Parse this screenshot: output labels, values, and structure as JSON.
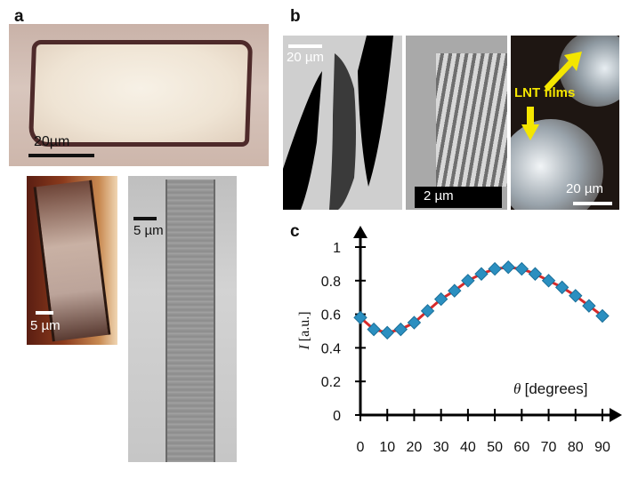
{
  "panels": {
    "a": {
      "label": "a",
      "micrographs": [
        {
          "scale_text": "20µm"
        },
        {
          "scale_text": "5 µm"
        },
        {
          "scale_text": "5 µm"
        }
      ]
    },
    "b": {
      "label": "b",
      "micrographs": [
        {
          "scale_text": "20 µm"
        },
        {
          "scale_text": "2 µm"
        },
        {
          "scale_text": "20 µm",
          "annotation": "LNT films"
        }
      ]
    },
    "c": {
      "label": "c"
    }
  },
  "colors": {
    "line": "#d62a2a",
    "marker": "#2b8fc0",
    "annotation": "#f4e600"
  },
  "chart_data": {
    "type": "line",
    "xlabel_symbol": "θ",
    "xlabel_unit": "[degrees]",
    "ylabel_symbol": "I",
    "ylabel_unit": "[a.u.]",
    "xlim": [
      0,
      90
    ],
    "ylim": [
      0,
      1
    ],
    "xticks": [
      "0",
      "10",
      "20",
      "30",
      "40",
      "50",
      "60",
      "70",
      "80",
      "90"
    ],
    "yticks": [
      "0",
      "0.2",
      "0.4",
      "0.6",
      "0.8",
      "1"
    ],
    "series": [
      {
        "style": "markers",
        "x": [
          0,
          5,
          10,
          15,
          20,
          25,
          30,
          35,
          40,
          45,
          50,
          55,
          60,
          65,
          70,
          75,
          80,
          85,
          90
        ],
        "y": [
          0.58,
          0.51,
          0.49,
          0.51,
          0.55,
          0.62,
          0.69,
          0.74,
          0.8,
          0.84,
          0.87,
          0.88,
          0.87,
          0.84,
          0.8,
          0.76,
          0.71,
          0.65,
          0.59
        ]
      },
      {
        "style": "fit-line",
        "x": [
          0,
          5,
          10,
          15,
          20,
          25,
          30,
          35,
          40,
          45,
          50,
          55,
          60,
          65,
          70,
          75,
          80,
          85,
          90
        ],
        "y": [
          0.58,
          0.51,
          0.49,
          0.51,
          0.55,
          0.62,
          0.69,
          0.74,
          0.8,
          0.84,
          0.87,
          0.88,
          0.87,
          0.84,
          0.8,
          0.76,
          0.71,
          0.65,
          0.59
        ]
      }
    ],
    "grid": false,
    "legend": false
  }
}
